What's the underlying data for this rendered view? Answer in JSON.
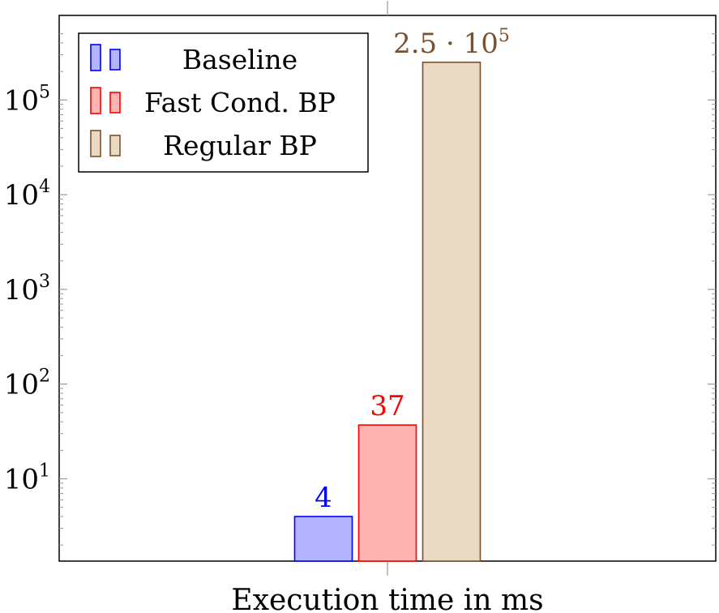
{
  "chart_data": {
    "type": "bar",
    "title": "",
    "xlabel": "Execution time in ms",
    "ylabel": "",
    "yscale": "log",
    "ylim": [
      1.25,
      500000
    ],
    "grid": false,
    "legend_position": "top-left",
    "yticks": [
      {
        "base": "10",
        "exp": "1",
        "value": 10
      },
      {
        "base": "10",
        "exp": "2",
        "value": 100
      },
      {
        "base": "10",
        "exp": "3",
        "value": 1000
      },
      {
        "base": "10",
        "exp": "4",
        "value": 10000
      },
      {
        "base": "10",
        "exp": "5",
        "value": 100000
      }
    ],
    "series": [
      {
        "name": "Baseline",
        "value": 4,
        "label": "4",
        "color": "#0000ff",
        "fill": "#b3b3ff"
      },
      {
        "name": "Fast Cond. BP",
        "value": 37,
        "label": "37",
        "color": "#ff0000",
        "fill": "#ffb3b3"
      },
      {
        "name": "Regular BP",
        "value": 250000,
        "label_base": "2.5 · 10",
        "label_exp": "5",
        "color": "#7a5230",
        "fill": "#ead9c3"
      }
    ]
  }
}
